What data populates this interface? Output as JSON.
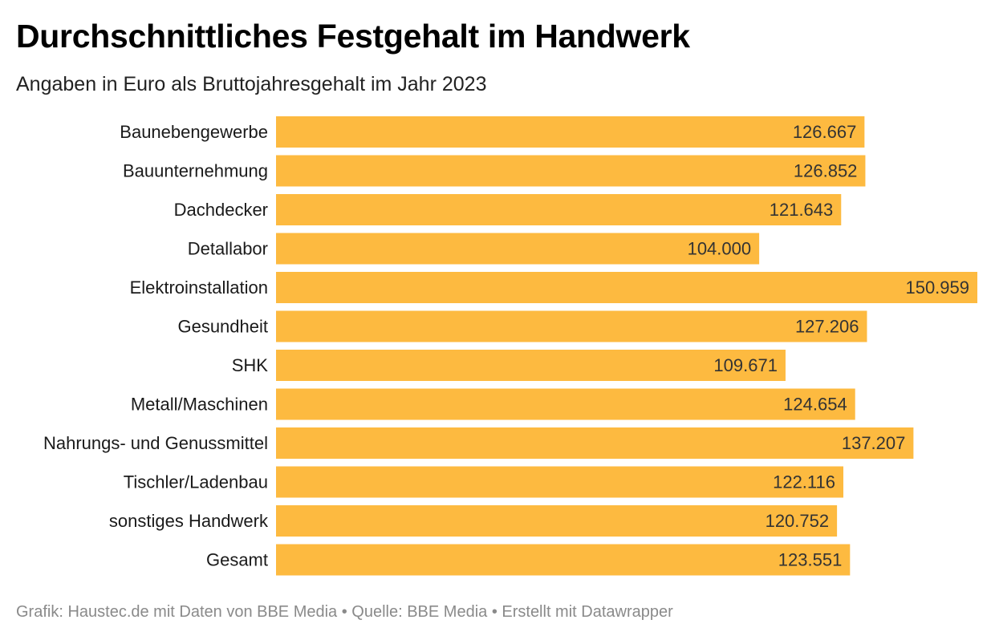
{
  "header": {
    "title": "Durchschnittliches Festgehalt im Handwerk",
    "subtitle": "Angaben in Euro als Bruttojahresgehalt im Jahr 2023"
  },
  "footer": {
    "source": "Grafik: Haustec.de mit Daten von BBE Media • Quelle: BBE Media • Erstellt mit Datawrapper"
  },
  "colors": {
    "bar": "#FDBA40"
  },
  "chart_data": {
    "type": "bar",
    "orientation": "horizontal",
    "title": "Durchschnittliches Festgehalt im Handwerk",
    "subtitle": "Angaben in Euro als Bruttojahresgehalt im Jahr 2023",
    "xlabel": "",
    "ylabel": "",
    "grid": false,
    "xlim": [
      0,
      150959
    ],
    "categories": [
      "Baunebengewerbe",
      "Bauunternehmung",
      "Dachdecker",
      "Detallabor",
      "Elektroinstallation",
      "Gesundheit",
      "SHK",
      "Metall/Maschinen",
      "Nahrungs- und Genussmittel",
      "Tischler/Ladenbau",
      "sonstiges Handwerk",
      "Gesamt"
    ],
    "values": [
      126667,
      126852,
      121643,
      104000,
      150959,
      127206,
      109671,
      124654,
      137207,
      122116,
      120752,
      123551
    ],
    "value_labels": [
      "126.667",
      "126.852",
      "121.643",
      "104.000",
      "150.959",
      "127.206",
      "109.671",
      "124.654",
      "137.207",
      "122.116",
      "120.752",
      "123.551"
    ]
  }
}
